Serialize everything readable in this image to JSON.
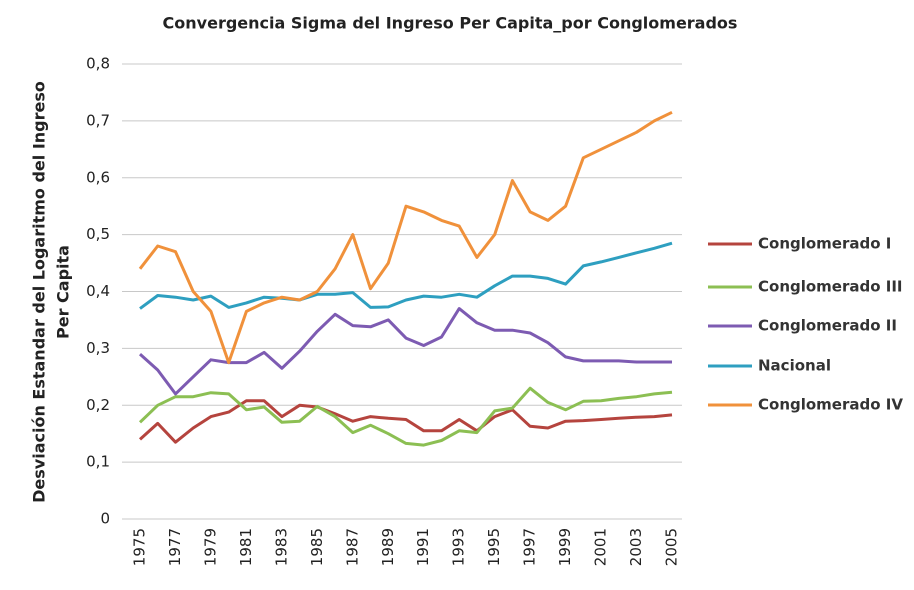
{
  "chart_data": {
    "type": "line",
    "title": "Convergencia Sigma  del Ingreso Per Capita_por Conglomerados",
    "ylabel": [
      "Desviación Estandar del Logaritmo del Ingreso",
      "Per Capita"
    ],
    "categories": [
      "1975",
      null,
      "1977",
      null,
      "1979",
      null,
      "1981",
      null,
      "1983",
      null,
      "1985",
      null,
      "1987",
      null,
      "1989",
      null,
      "1991",
      null,
      "1993",
      null,
      "1995",
      null,
      "1997",
      null,
      "1999",
      null,
      "2001",
      null,
      "2003",
      null,
      "2005"
    ],
    "ylim": [
      0,
      0.8
    ],
    "yticks": [
      0,
      {
        "value": 0.1,
        "label": "0,1"
      },
      {
        "value": 0.2,
        "label": "0,2"
      },
      {
        "value": 0.3,
        "label": "0,3"
      },
      {
        "value": 0.4,
        "label": "0,4"
      },
      {
        "value": 0.5,
        "label": "0,5"
      },
      {
        "value": 0.6,
        "label": "0,6"
      },
      {
        "value": 0.7,
        "label": "0,7"
      },
      {
        "value": 0.8,
        "label": "0,8"
      }
    ],
    "grid": true,
    "legend": "right",
    "series": [
      {
        "name": "Conglomerado I",
        "color": "#b5443e",
        "values": [
          0.14,
          0.168,
          0.135,
          0.16,
          0.18,
          0.188,
          0.208,
          0.208,
          0.18,
          0.2,
          0.197,
          0.185,
          0.172,
          0.18,
          0.177,
          0.175,
          0.155,
          0.155,
          0.175,
          0.155,
          0.18,
          0.192,
          0.163,
          0.16,
          0.172,
          0.173,
          0.175,
          0.177,
          0.179,
          0.18,
          0.183
        ]
      },
      {
        "name": "Conglomerado III",
        "color": "#8cbf53",
        "values": [
          0.17,
          0.2,
          0.215,
          0.215,
          0.222,
          0.22,
          0.192,
          0.197,
          0.17,
          0.172,
          0.198,
          0.18,
          0.152,
          0.165,
          0.15,
          0.133,
          0.13,
          0.138,
          0.155,
          0.152,
          0.19,
          0.195,
          0.23,
          0.205,
          0.192,
          0.207,
          0.208,
          0.212,
          0.215,
          0.22,
          0.223
        ]
      },
      {
        "name": "Conglomerado II",
        "color": "#7d5bb2",
        "values": [
          0.29,
          0.262,
          0.22,
          0.25,
          0.28,
          0.275,
          0.275,
          0.293,
          0.265,
          0.295,
          0.33,
          0.36,
          0.34,
          0.338,
          0.35,
          0.318,
          0.305,
          0.32,
          0.37,
          0.345,
          0.332,
          0.332,
          0.327,
          0.31,
          0.285,
          0.278,
          0.278,
          0.278,
          0.276,
          0.276,
          0.276
        ]
      },
      {
        "name": "Nacional",
        "color": "#2e9fc0",
        "values": [
          0.37,
          0.393,
          0.39,
          0.385,
          0.392,
          0.372,
          0.38,
          0.39,
          0.388,
          0.385,
          0.395,
          0.395,
          0.398,
          0.372,
          0.373,
          0.385,
          0.392,
          0.39,
          0.395,
          0.39,
          0.41,
          0.427,
          0.427,
          0.423,
          0.413,
          0.445,
          0.452,
          0.46,
          0.468,
          0.476,
          0.485
        ]
      },
      {
        "name": "Conglomerado IV",
        "color": "#f0913b",
        "values": [
          0.44,
          0.48,
          0.47,
          0.4,
          0.365,
          0.275,
          0.365,
          0.38,
          0.39,
          0.385,
          0.4,
          0.44,
          0.5,
          0.405,
          0.45,
          0.55,
          0.54,
          0.525,
          0.515,
          0.46,
          0.5,
          0.595,
          0.54,
          0.525,
          0.55,
          0.635,
          0.65,
          0.665,
          0.68,
          0.7,
          0.715
        ]
      }
    ]
  }
}
